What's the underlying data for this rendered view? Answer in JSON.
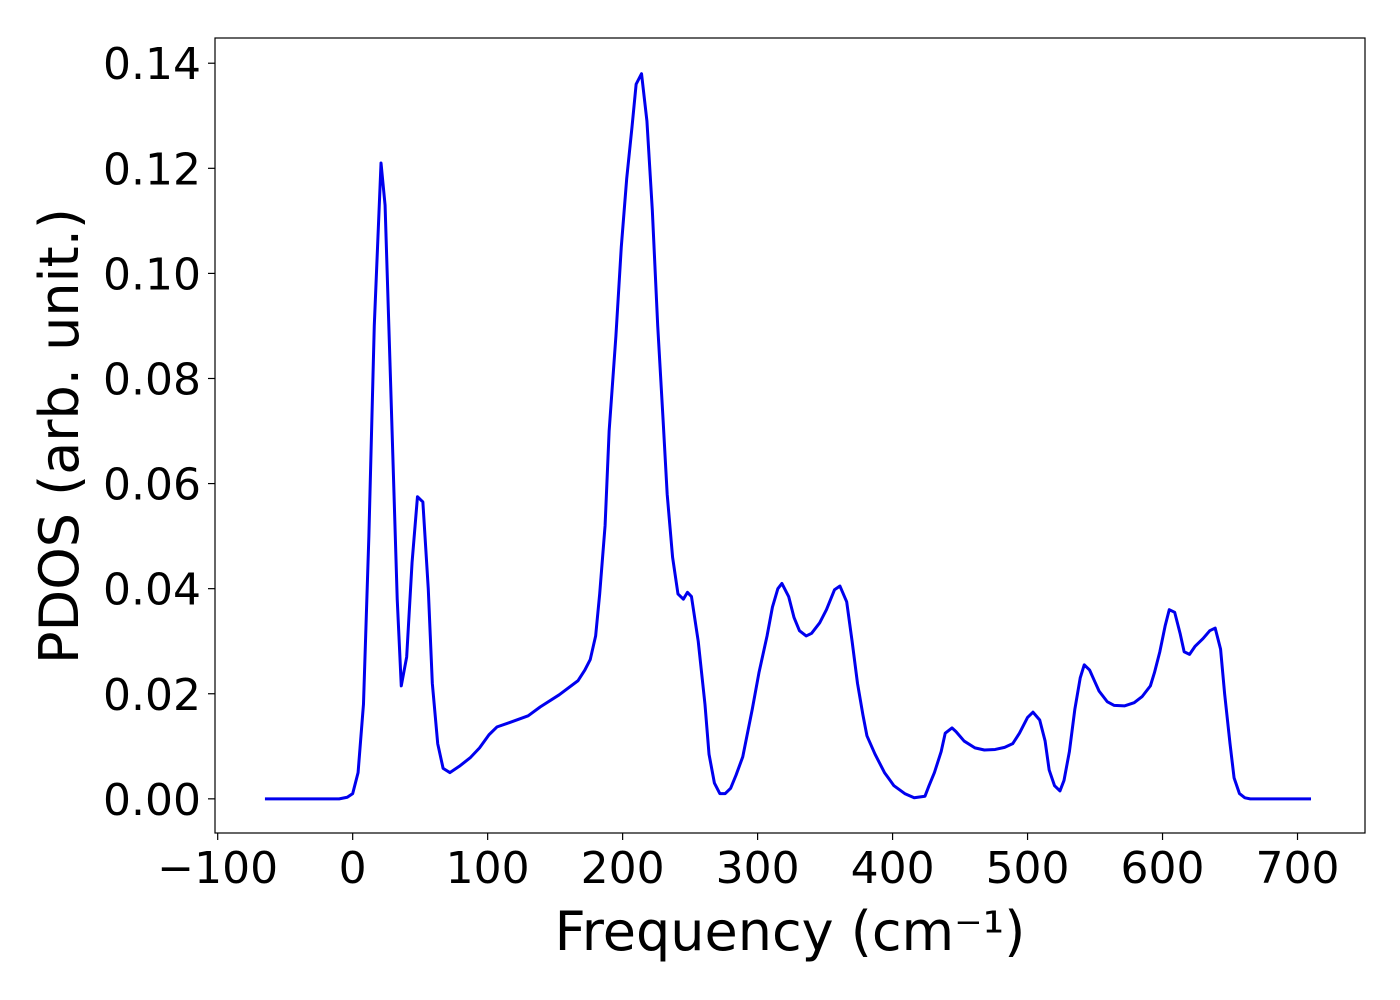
{
  "chart_data": {
    "type": "line",
    "xlabel": "Frequency (cm⁻¹)",
    "ylabel": "PDOS (arb. unit.)",
    "x": [
      -65,
      -39,
      -10,
      -4,
      0,
      4,
      8,
      12,
      16,
      21,
      24,
      28,
      33,
      36,
      40,
      44,
      48,
      52,
      56,
      59,
      63,
      67,
      72,
      79,
      87,
      94,
      101,
      107,
      116,
      130,
      139,
      153,
      167,
      172,
      176,
      180,
      183,
      187,
      190,
      195,
      199,
      203,
      207,
      210,
      214,
      218,
      222,
      226,
      230,
      233,
      237,
      241,
      245,
      248,
      251,
      256,
      261,
      264,
      268,
      272,
      276,
      280,
      284,
      289,
      296,
      301,
      307,
      311,
      315,
      318,
      323,
      327,
      331,
      336,
      340,
      346,
      351,
      357,
      361,
      366,
      370,
      374,
      378,
      381,
      387,
      394,
      401,
      409,
      416,
      424,
      427,
      431,
      436,
      439,
      444,
      447,
      453,
      461,
      468,
      476,
      483,
      489,
      494,
      500,
      504,
      509,
      513,
      516,
      520,
      524,
      527,
      531,
      535,
      539,
      542,
      546,
      550,
      553,
      559,
      564,
      572,
      579,
      585,
      591,
      594,
      598,
      602,
      605,
      609,
      613,
      616,
      620,
      624,
      630,
      635,
      639,
      643,
      646,
      650,
      653,
      657,
      661,
      665,
      672,
      710
    ],
    "series": [
      {
        "name": "PDOS",
        "color": "#0000ee",
        "values": [
          0,
          0,
          0,
          0.0003,
          0.001,
          0.005,
          0.018,
          0.05,
          0.09,
          0.121,
          0.113,
          0.08,
          0.038,
          0.0215,
          0.027,
          0.045,
          0.0575,
          0.0565,
          0.04,
          0.022,
          0.0105,
          0.0058,
          0.005,
          0.0062,
          0.0078,
          0.0097,
          0.0122,
          0.0137,
          0.0145,
          0.0158,
          0.0175,
          0.0198,
          0.0225,
          0.0245,
          0.0265,
          0.031,
          0.039,
          0.052,
          0.07,
          0.088,
          0.105,
          0.118,
          0.128,
          0.136,
          0.138,
          0.129,
          0.112,
          0.09,
          0.072,
          0.058,
          0.046,
          0.039,
          0.038,
          0.0393,
          0.0385,
          0.03,
          0.018,
          0.0085,
          0.003,
          0.001,
          0.001,
          0.002,
          0.0045,
          0.008,
          0.017,
          0.024,
          0.031,
          0.0365,
          0.04,
          0.041,
          0.0385,
          0.0345,
          0.032,
          0.031,
          0.0315,
          0.0335,
          0.036,
          0.0398,
          0.0405,
          0.0375,
          0.03,
          0.022,
          0.016,
          0.012,
          0.0085,
          0.005,
          0.0025,
          0.001,
          0.0002,
          0.0005,
          0.0025,
          0.005,
          0.009,
          0.0125,
          0.0135,
          0.0128,
          0.011,
          0.0097,
          0.0093,
          0.0094,
          0.0098,
          0.0105,
          0.0125,
          0.0155,
          0.0165,
          0.015,
          0.011,
          0.0055,
          0.0025,
          0.0015,
          0.0035,
          0.009,
          0.017,
          0.023,
          0.0255,
          0.0245,
          0.0222,
          0.0205,
          0.0185,
          0.0178,
          0.0177,
          0.0183,
          0.0195,
          0.0215,
          0.024,
          0.028,
          0.033,
          0.036,
          0.0355,
          0.0315,
          0.028,
          0.0275,
          0.029,
          0.0305,
          0.032,
          0.0325,
          0.0285,
          0.02,
          0.0105,
          0.004,
          0.001,
          0.0002,
          0,
          0,
          0
        ]
      }
    ],
    "xlim": [
      -102,
      750
    ],
    "ylim": [
      -0.0065,
      0.1448
    ],
    "xticks": [
      {
        "value": -100,
        "label": "−100"
      },
      0,
      100,
      200,
      300,
      400,
      500,
      600,
      700
    ],
    "yticks": [
      {
        "value": 0,
        "label": "0.00"
      },
      {
        "value": 0.02,
        "label": "0.02"
      },
      {
        "value": 0.04,
        "label": "0.04"
      },
      {
        "value": 0.06,
        "label": "0.06"
      },
      {
        "value": 0.08,
        "label": "0.08"
      },
      {
        "value": 0.1,
        "label": "0.10"
      },
      {
        "value": 0.12,
        "label": "0.12"
      },
      {
        "value": 0.14,
        "label": "0.14"
      }
    ],
    "grid": false
  }
}
